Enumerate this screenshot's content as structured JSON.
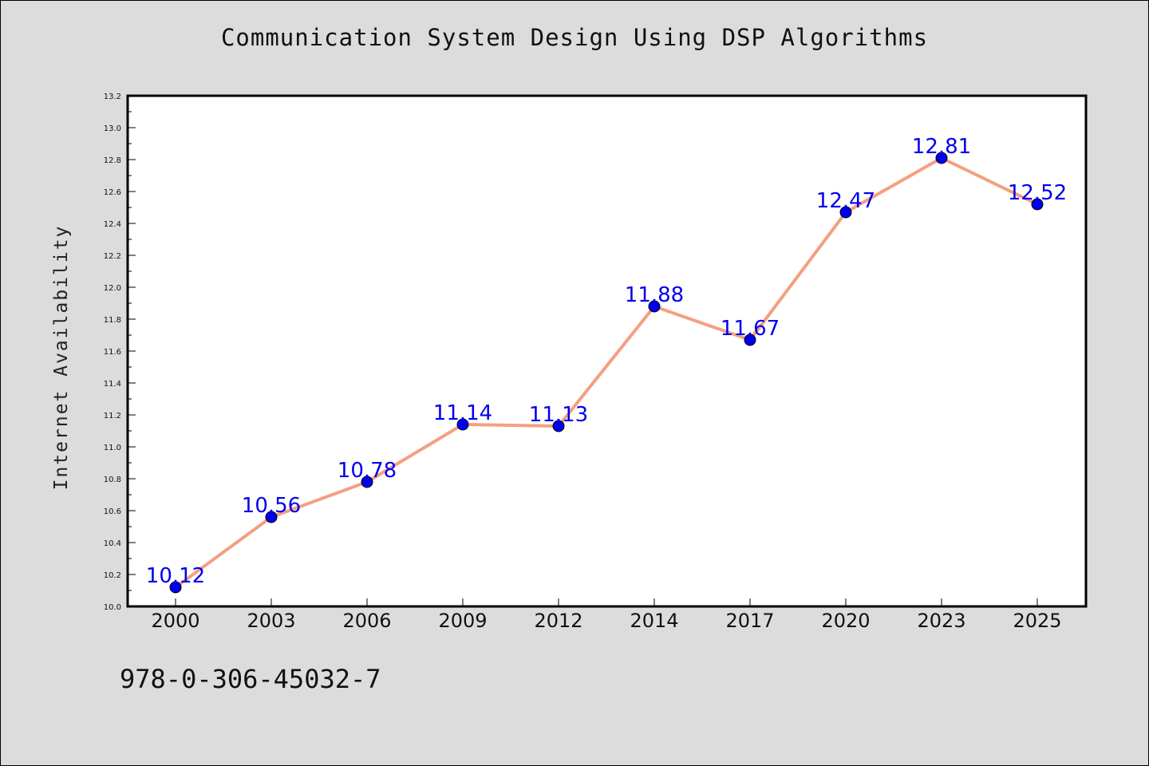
{
  "title": "Communication System Design Using DSP Algorithms",
  "footer_text": "978-0-306-45032-7",
  "chart_data": {
    "type": "line",
    "title": "Communication System Design Using DSP Algorithms",
    "xlabel": "",
    "ylabel": "Internet Availability",
    "categories": [
      "2000",
      "2003",
      "2006",
      "2009",
      "2012",
      "2014",
      "2017",
      "2020",
      "2023",
      "2025"
    ],
    "series": [
      {
        "values": [
          10.12,
          10.56,
          10.78,
          11.14,
          11.13,
          11.88,
          11.67,
          12.47,
          12.81,
          12.52
        ],
        "line_color": "#f4a080",
        "marker_color": "#0000ee",
        "label_color": "#0000ee"
      }
    ],
    "ylim": [
      10.0,
      13.2
    ],
    "yticks": [
      "10.0",
      "10.2",
      "10.4",
      "10.6",
      "10.8",
      "11.0",
      "11.2",
      "11.4",
      "11.6",
      "11.8",
      "12.0",
      "12.2",
      "12.4",
      "12.6",
      "12.8",
      "13.0",
      "13.2"
    ],
    "grid": false,
    "legend": "none"
  }
}
